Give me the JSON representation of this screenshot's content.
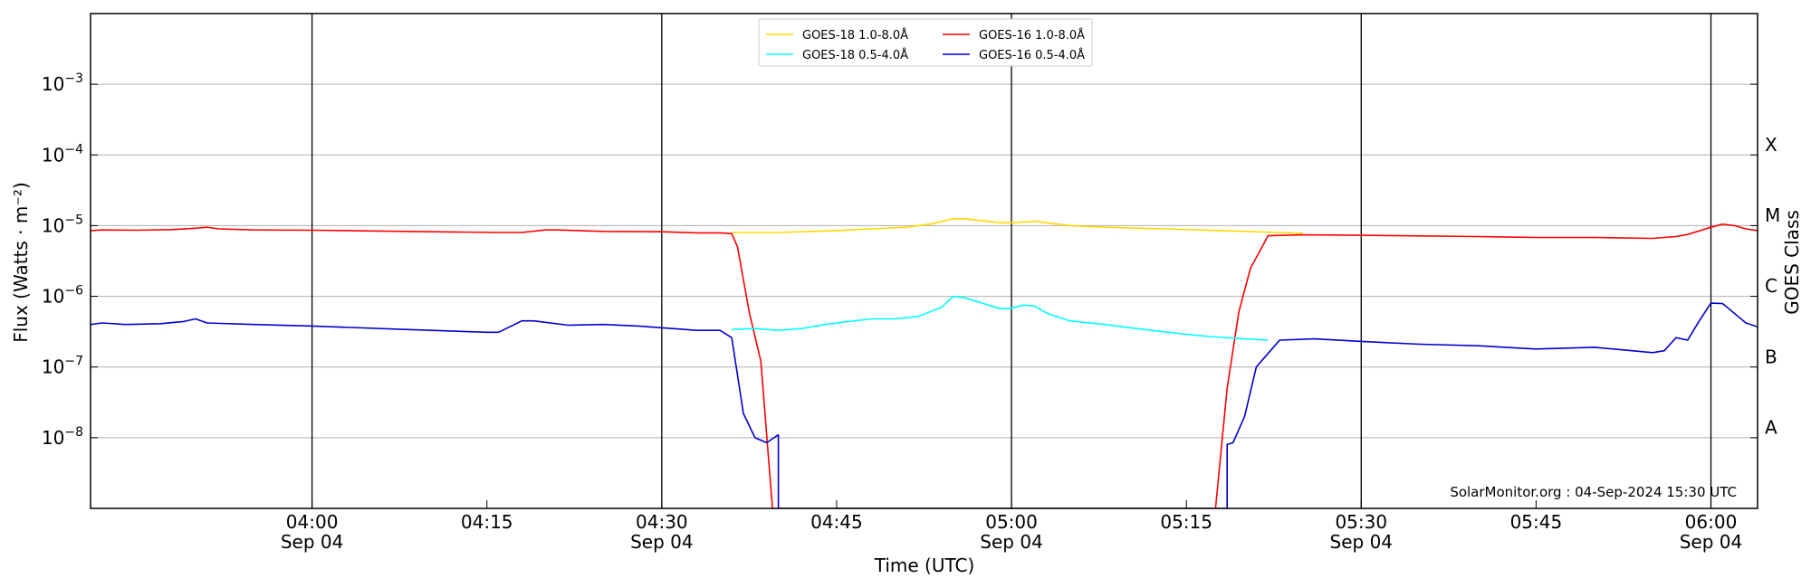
{
  "chart_data": {
    "type": "line",
    "title": "",
    "xlabel": "Time (UTC)",
    "ylabel": "Flux (Watts · m⁻²)",
    "y2label": "GOES Class",
    "yscale": "log",
    "ylim": [
      1e-09,
      0.01
    ],
    "xlim": [
      "03:41",
      "06:04"
    ],
    "grid": "horizontal",
    "legend_position": "top-center",
    "watermark": "SolarMonitor.org : 04-Sep-2024 15:30 UTC",
    "x_ticks": [
      {
        "time": "04:00",
        "label": "04:00",
        "date": "Sep 04",
        "vline": true
      },
      {
        "time": "04:15",
        "label": "04:15",
        "date": "",
        "vline": false
      },
      {
        "time": "04:30",
        "label": "04:30",
        "date": "Sep 04",
        "vline": true
      },
      {
        "time": "04:45",
        "label": "04:45",
        "date": "",
        "vline": false
      },
      {
        "time": "05:00",
        "label": "05:00",
        "date": "Sep 04",
        "vline": true
      },
      {
        "time": "05:15",
        "label": "05:15",
        "date": "",
        "vline": false
      },
      {
        "time": "05:30",
        "label": "05:30",
        "date": "Sep 04",
        "vline": true
      },
      {
        "time": "05:45",
        "label": "05:45",
        "date": "",
        "vline": false
      },
      {
        "time": "06:00",
        "label": "06:00",
        "date": "Sep 04",
        "vline": true
      }
    ],
    "y_ticks": [
      {
        "value": 1e-08,
        "base": "10",
        "exp": "−8"
      },
      {
        "value": 1e-07,
        "base": "10",
        "exp": "−7"
      },
      {
        "value": 1e-06,
        "base": "10",
        "exp": "−6"
      },
      {
        "value": 1e-05,
        "base": "10",
        "exp": "−5"
      },
      {
        "value": 0.0001,
        "base": "10",
        "exp": "−4"
      },
      {
        "value": 0.001,
        "base": "10",
        "exp": "−3"
      }
    ],
    "goes_classes": [
      {
        "label": "A",
        "value": 1.4e-08
      },
      {
        "label": "B",
        "value": 1.4e-07
      },
      {
        "label": "C",
        "value": 1.4e-06
      },
      {
        "label": "M",
        "value": 1.4e-05
      },
      {
        "label": "X",
        "value": 0.00014
      }
    ],
    "series": [
      {
        "name": "GOES-18 1.0-8.0Å",
        "color": "#ffd700",
        "points": [
          [
            "04:36",
            8e-06
          ],
          [
            "04:40",
            8e-06
          ],
          [
            "04:45",
            8.5e-06
          ],
          [
            "04:48",
            9e-06
          ],
          [
            "04:51",
            9.5e-06
          ],
          [
            "04:53",
            1.05e-05
          ],
          [
            "04:55",
            1.25e-05
          ],
          [
            "04:56",
            1.25e-05
          ],
          [
            "04:58",
            1.15e-05
          ],
          [
            "04:59",
            1.1e-05
          ],
          [
            "05:00",
            1.1e-05
          ],
          [
            "05:02",
            1.15e-05
          ],
          [
            "05:03",
            1.1e-05
          ],
          [
            "05:05",
            1e-05
          ],
          [
            "05:08",
            9.5e-06
          ],
          [
            "05:13",
            9e-06
          ],
          [
            "05:18",
            8.5e-06
          ],
          [
            "05:23",
            8e-06
          ],
          [
            "05:25",
            7.8e-06
          ]
        ]
      },
      {
        "name": "GOES-16 1.0-8.0Å",
        "color": "#ff0000",
        "points": [
          [
            "03:41",
            8.5e-06
          ],
          [
            "03:42",
            8.7e-06
          ],
          [
            "03:45",
            8.6e-06
          ],
          [
            "03:48",
            8.8e-06
          ],
          [
            "03:50",
            9.2e-06
          ],
          [
            "03:51",
            9.5e-06
          ],
          [
            "03:52",
            9e-06
          ],
          [
            "03:55",
            8.7e-06
          ],
          [
            "04:00",
            8.6e-06
          ],
          [
            "04:08",
            8.3e-06
          ],
          [
            "04:16",
            8e-06
          ],
          [
            "04:18",
            8e-06
          ],
          [
            "04:20",
            8.7e-06
          ],
          [
            "04:21",
            8.7e-06
          ],
          [
            "04:25",
            8.3e-06
          ],
          [
            "04:30",
            8.2e-06
          ],
          [
            "04:33",
            7.9e-06
          ],
          [
            "04:35",
            7.9e-06
          ],
          [
            "04:36",
            7.7e-06
          ],
          [
            "04:36.5",
            5e-06
          ],
          [
            "04:37.5",
            6e-07
          ],
          [
            "04:38.5",
            1.2e-07
          ],
          [
            "04:39.5",
            1e-09
          ],
          [
            "05:17.5",
            1e-09
          ],
          [
            "05:18.5",
            5e-08
          ],
          [
            "05:19.5",
            6e-07
          ],
          [
            "05:20.5",
            2.5e-06
          ],
          [
            "05:21.5",
            5e-06
          ],
          [
            "05:22",
            7.2e-06
          ],
          [
            "05:25",
            7.4e-06
          ],
          [
            "05:30",
            7.3e-06
          ],
          [
            "05:40",
            7e-06
          ],
          [
            "05:45",
            6.8e-06
          ],
          [
            "05:50",
            6.8e-06
          ],
          [
            "05:55",
            6.6e-06
          ],
          [
            "05:57",
            7e-06
          ],
          [
            "05:58",
            7.5e-06
          ],
          [
            "06:00",
            9.5e-06
          ],
          [
            "06:01",
            1.05e-05
          ],
          [
            "06:02",
            1e-05
          ],
          [
            "06:03",
            9e-06
          ],
          [
            "06:04",
            8.5e-06
          ]
        ]
      },
      {
        "name": "GOES-18 0.5-4.0Å",
        "color": "#00ffff",
        "points": [
          [
            "04:36",
            3.4e-07
          ],
          [
            "04:38",
            3.5e-07
          ],
          [
            "04:40",
            3.3e-07
          ],
          [
            "04:42",
            3.5e-07
          ],
          [
            "04:44",
            4e-07
          ],
          [
            "04:46",
            4.4e-07
          ],
          [
            "04:48",
            4.8e-07
          ],
          [
            "04:50",
            4.8e-07
          ],
          [
            "04:52",
            5.2e-07
          ],
          [
            "04:54",
            7e-07
          ],
          [
            "04:55",
            1e-06
          ],
          [
            "04:56",
            9.5e-07
          ],
          [
            "04:57",
            8.5e-07
          ],
          [
            "04:59",
            6.7e-07
          ],
          [
            "05:00",
            6.8e-07
          ],
          [
            "05:01",
            7.5e-07
          ],
          [
            "05:02",
            7.3e-07
          ],
          [
            "05:03",
            5.8e-07
          ],
          [
            "05:05",
            4.5e-07
          ],
          [
            "05:08",
            4e-07
          ],
          [
            "05:12",
            3.3e-07
          ],
          [
            "05:15",
            2.9e-07
          ],
          [
            "05:17",
            2.7e-07
          ],
          [
            "05:20",
            2.5e-07
          ],
          [
            "05:22",
            2.4e-07
          ]
        ]
      },
      {
        "name": "GOES-16 0.5-4.0Å",
        "color": "#0000cd",
        "points": [
          [
            "03:41",
            4e-07
          ],
          [
            "03:42",
            4.2e-07
          ],
          [
            "03:44",
            4e-07
          ],
          [
            "03:47",
            4.1e-07
          ],
          [
            "03:49",
            4.4e-07
          ],
          [
            "03:50",
            4.8e-07
          ],
          [
            "03:51",
            4.2e-07
          ],
          [
            "03:55",
            4e-07
          ],
          [
            "04:00",
            3.8e-07
          ],
          [
            "04:08",
            3.4e-07
          ],
          [
            "04:15",
            3.1e-07
          ],
          [
            "04:16",
            3.1e-07
          ],
          [
            "04:18",
            4.5e-07
          ],
          [
            "04:19",
            4.5e-07
          ],
          [
            "04:22",
            3.9e-07
          ],
          [
            "04:25",
            4e-07
          ],
          [
            "04:28",
            3.8e-07
          ],
          [
            "04:33",
            3.3e-07
          ],
          [
            "04:35",
            3.3e-07
          ],
          [
            "04:36",
            2.6e-07
          ],
          [
            "04:37",
            2.2e-08
          ],
          [
            "04:38",
            1e-08
          ],
          [
            "04:39",
            8.5e-09
          ],
          [
            "04:40",
            1.1e-08
          ],
          [
            "04:40",
            1e-09
          ],
          [
            "05:18.5",
            1e-09
          ],
          [
            "05:18.5",
            8e-09
          ],
          [
            "05:19",
            8.5e-09
          ],
          [
            "05:20",
            2e-08
          ],
          [
            "05:21",
            1e-07
          ],
          [
            "05:23",
            2.4e-07
          ],
          [
            "05:26",
            2.5e-07
          ],
          [
            "05:30",
            2.3e-07
          ],
          [
            "05:35",
            2.1e-07
          ],
          [
            "05:40",
            2e-07
          ],
          [
            "05:45",
            1.8e-07
          ],
          [
            "05:50",
            1.9e-07
          ],
          [
            "05:55",
            1.6e-07
          ],
          [
            "05:56",
            1.7e-07
          ],
          [
            "05:57",
            2.6e-07
          ],
          [
            "05:58",
            2.4e-07
          ],
          [
            "05:59",
            4.5e-07
          ],
          [
            "06:00",
            8e-07
          ],
          [
            "06:01",
            7.9e-07
          ],
          [
            "06:03",
            4.2e-07
          ],
          [
            "06:04",
            3.7e-07
          ]
        ]
      }
    ],
    "legend_order": [
      0,
      2,
      1,
      3
    ]
  }
}
